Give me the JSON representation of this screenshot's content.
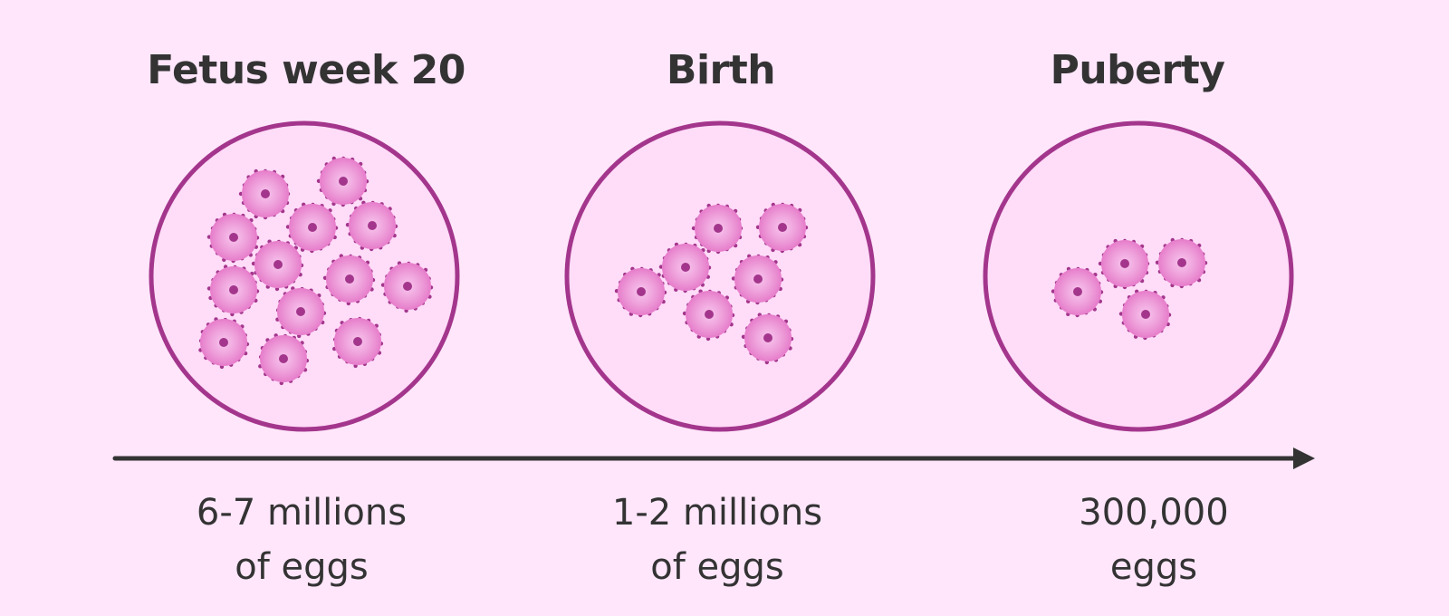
{
  "stages": [
    {
      "id": "fetus-week-20",
      "title": "Fetus week 20",
      "count_line1": "6-7 millions",
      "count_line2": "of eggs",
      "egg_count_shown": 13
    },
    {
      "id": "birth",
      "title": "Birth",
      "count_line1": "1-2 millions",
      "count_line2": "of eggs",
      "egg_count_shown": 7
    },
    {
      "id": "puberty",
      "title": "Puberty",
      "count_line1": "300,000",
      "count_line2": "eggs",
      "egg_count_shown": 4
    }
  ],
  "colors": {
    "background": "#ffe6fb",
    "circle_fill": "#ffdcf8",
    "circle_stroke": "#a3368c",
    "egg_outer": "#e780cc",
    "egg_inner": "#f8c7ee",
    "egg_dots": "#a3368c",
    "nucleus": "#a3368c",
    "arrow": "#333333",
    "text": "#333333"
  }
}
